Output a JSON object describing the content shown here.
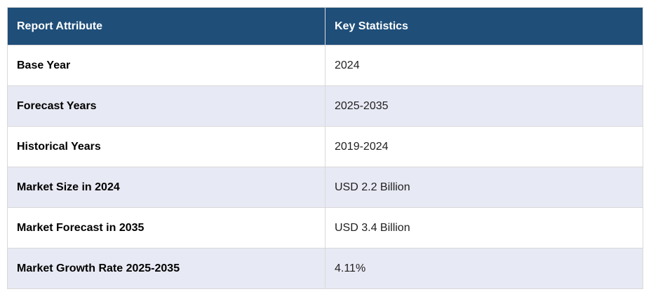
{
  "table": {
    "columns": [
      {
        "label": "Report Attribute"
      },
      {
        "label": "Key Statistics"
      }
    ],
    "rows": [
      {
        "attribute": "Base Year",
        "value": "2024"
      },
      {
        "attribute": "Forecast Years",
        "value": "2025-2035"
      },
      {
        "attribute": "Historical Years",
        "value": "2019-2024"
      },
      {
        "attribute": "Market Size in 2024",
        "value": "USD 2.2 Billion"
      },
      {
        "attribute": "Market Forecast in 2035",
        "value": "USD 3.4 Billion"
      },
      {
        "attribute": "Market Growth Rate 2025-2035",
        "value": "4.11%"
      }
    ],
    "colors": {
      "header_bg": "#1f4e79",
      "header_text": "#ffffff",
      "row_bg": "#ffffff",
      "alt_row_bg": "#e7e9f4",
      "border": "#d9d9d9",
      "attribute_text": "#000000",
      "value_text": "#1f1f1f"
    }
  }
}
